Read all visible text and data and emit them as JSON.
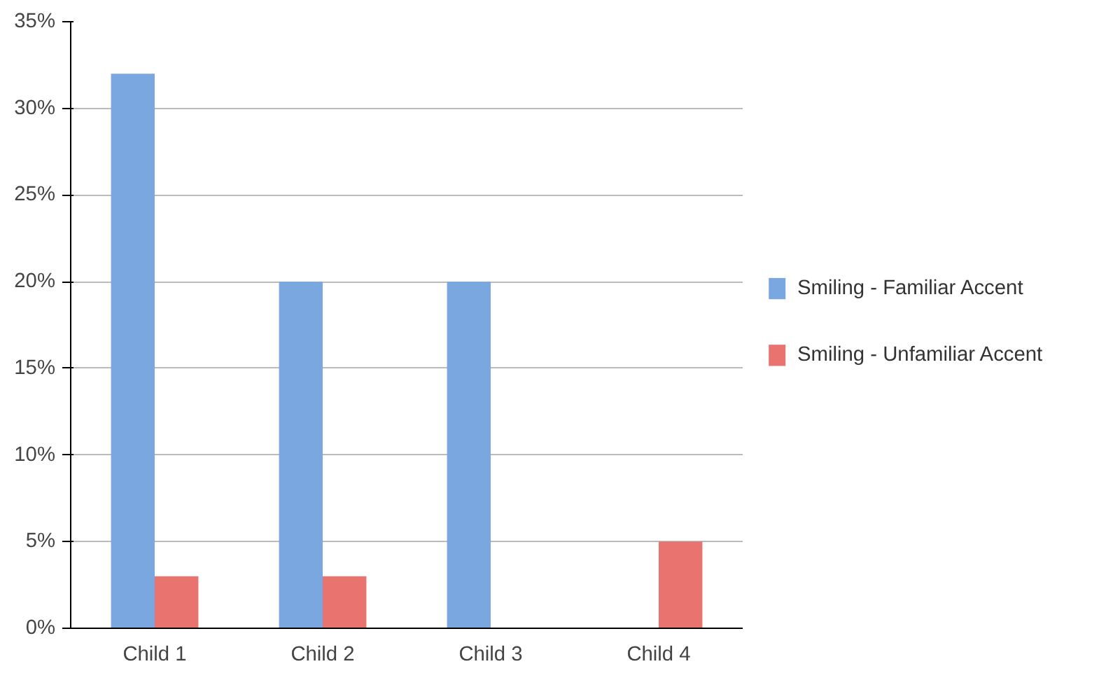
{
  "chart_data": {
    "type": "bar",
    "categories": [
      "Child 1",
      "Child 2",
      "Child 3",
      "Child 4"
    ],
    "series": [
      {
        "name": "Smiling - Familiar Accent",
        "color": "#7ba7e1",
        "values": [
          32,
          20,
          20,
          0
        ]
      },
      {
        "name": "Smiling - Unfamiliar Accent",
        "color": "#e8736f",
        "values": [
          3,
          3,
          0,
          5
        ]
      }
    ],
    "ylim": [
      0,
      35
    ],
    "yticks": [
      {
        "value": 0,
        "label": "0%"
      },
      {
        "value": 5,
        "label": "5%"
      },
      {
        "value": 10,
        "label": "10%"
      },
      {
        "value": 15,
        "label": "15%"
      },
      {
        "value": 20,
        "label": "20%"
      },
      {
        "value": 25,
        "label": "25%"
      },
      {
        "value": 30,
        "label": "30%"
      },
      {
        "value": 35,
        "label": "35%"
      }
    ],
    "grid": "y",
    "legend": "right"
  }
}
